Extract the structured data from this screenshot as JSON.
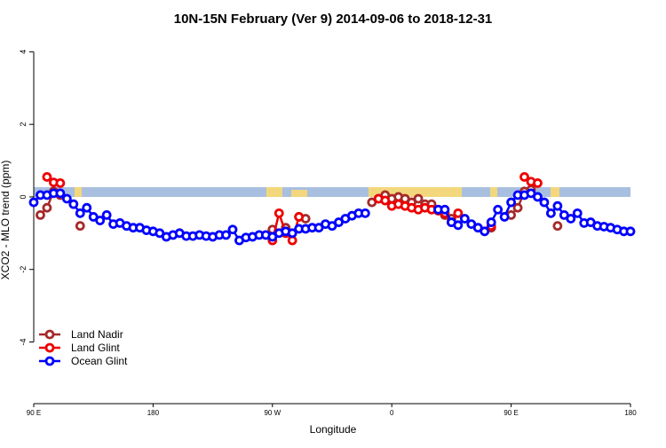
{
  "chart_data": {
    "type": "line",
    "title": "10N-15N February (Ver 9)   2014-09-06 to 2018-12-31",
    "x_label": "Longitude",
    "y_label": "XCO2 - MLO trend (ppm)",
    "x": [
      90,
      95,
      100,
      105,
      110,
      115,
      120,
      125,
      130,
      135,
      140,
      145,
      150,
      155,
      160,
      165,
      170,
      175,
      180,
      185,
      190,
      195,
      200,
      205,
      210,
      215,
      220,
      225,
      230,
      235,
      240,
      245,
      250,
      255,
      260,
      265,
      270,
      275,
      280,
      285,
      290,
      295,
      300,
      305,
      310,
      315,
      320,
      325,
      330,
      335,
      340,
      345,
      350,
      355,
      360,
      365,
      370,
      375,
      380,
      385,
      390,
      395,
      400,
      405,
      410,
      415,
      420,
      425,
      430,
      435,
      440,
      445,
      450,
      455,
      460,
      465,
      470,
      475,
      480,
      485,
      490,
      495,
      500,
      505,
      510,
      515,
      520,
      525,
      530,
      535,
      540
    ],
    "xlim": [
      90,
      540
    ],
    "xticks": [
      {
        "value": 90,
        "label": "90 E"
      },
      {
        "value": 180,
        "label": "180"
      },
      {
        "value": 270,
        "label": "90 W"
      },
      {
        "value": 360,
        "label": "0"
      },
      {
        "value": 450,
        "label": "90 E"
      },
      {
        "value": 540,
        "label": "180"
      }
    ],
    "ylim": [
      -5.7,
      4.45
    ],
    "yticks": [
      -4,
      -2,
      0,
      2,
      4
    ],
    "legend": "bottomleft",
    "series": [
      {
        "name": "Land Nadir",
        "color": "#a52a2a",
        "values": [
          null,
          -0.5,
          -0.3,
          0.15,
          0.05,
          null,
          null,
          -0.8,
          null,
          null,
          null,
          null,
          null,
          null,
          null,
          null,
          null,
          null,
          null,
          null,
          null,
          null,
          null,
          null,
          null,
          null,
          null,
          null,
          null,
          null,
          null,
          null,
          null,
          null,
          null,
          null,
          -0.9,
          null,
          -0.85,
          null,
          -0.55,
          -0.6,
          null,
          null,
          null,
          null,
          null,
          null,
          null,
          null,
          null,
          -0.15,
          -0.05,
          0.05,
          -0.05,
          0.0,
          -0.05,
          -0.15,
          -0.05,
          -0.2,
          -0.2,
          -0.35,
          -0.5,
          -0.6,
          null,
          null,
          null,
          null,
          null,
          -0.85,
          null,
          null,
          -0.5,
          -0.3,
          0.15,
          0.2,
          null,
          null,
          null,
          -0.8,
          null,
          null,
          null,
          null,
          null,
          null,
          null,
          null,
          null,
          null,
          null
        ]
      },
      {
        "name": "Land Glint",
        "color": "#ee0000",
        "values": [
          null,
          null,
          0.55,
          0.4,
          0.38,
          null,
          null,
          null,
          null,
          null,
          null,
          null,
          null,
          null,
          null,
          null,
          null,
          null,
          null,
          null,
          null,
          null,
          null,
          null,
          null,
          null,
          null,
          null,
          null,
          null,
          null,
          null,
          null,
          null,
          null,
          null,
          -1.2,
          -0.45,
          -1.0,
          -1.2,
          -0.55,
          null,
          null,
          null,
          null,
          null,
          null,
          null,
          null,
          null,
          null,
          null,
          -0.05,
          -0.1,
          -0.25,
          -0.2,
          -0.25,
          -0.3,
          -0.35,
          -0.3,
          -0.35,
          -0.38,
          -0.45,
          -0.7,
          -0.45,
          null,
          null,
          null,
          null,
          -0.8,
          null,
          null,
          null,
          null,
          0.55,
          0.42,
          0.38,
          null,
          null,
          null,
          null,
          null,
          null,
          null,
          null,
          null,
          null,
          null,
          null,
          null,
          null
        ]
      },
      {
        "name": "Ocean Glint",
        "color": "#0000ff",
        "values": [
          -0.15,
          0.05,
          0.05,
          0.1,
          0.1,
          -0.05,
          -0.2,
          -0.45,
          -0.3,
          -0.55,
          -0.65,
          -0.5,
          -0.75,
          -0.72,
          -0.8,
          -0.85,
          -0.85,
          -0.92,
          -0.95,
          -1.0,
          -1.1,
          -1.05,
          -1.0,
          -1.08,
          -1.08,
          -1.05,
          -1.08,
          -1.1,
          -1.05,
          -1.05,
          -0.9,
          -1.2,
          -1.12,
          -1.1,
          -1.05,
          -1.05,
          -1.1,
          -1.0,
          -0.95,
          -1.0,
          -0.88,
          -0.88,
          -0.85,
          -0.85,
          -0.75,
          -0.8,
          -0.7,
          -0.6,
          -0.52,
          -0.45,
          -0.45,
          null,
          null,
          null,
          null,
          null,
          null,
          null,
          null,
          null,
          null,
          -0.35,
          -0.35,
          -0.7,
          -0.78,
          -0.6,
          -0.75,
          -0.85,
          -0.95,
          -0.7,
          -0.35,
          -0.55,
          -0.15,
          0.05,
          0.05,
          0.1,
          0.0,
          -0.15,
          -0.45,
          -0.25,
          -0.5,
          -0.6,
          -0.45,
          -0.72,
          -0.7,
          -0.8,
          -0.82,
          -0.85,
          -0.9,
          -0.95,
          -0.95
        ]
      }
    ]
  }
}
